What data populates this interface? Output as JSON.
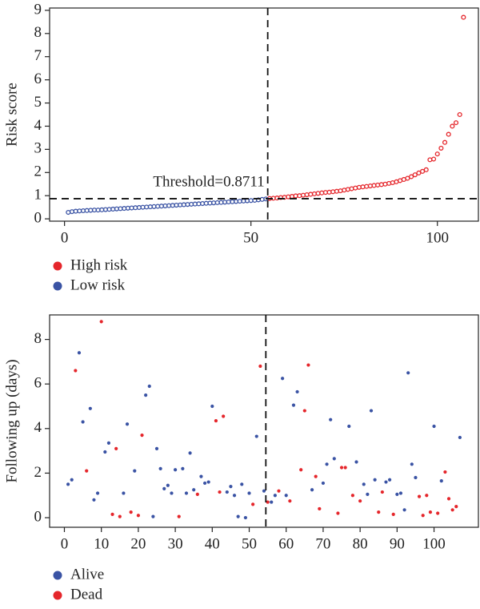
{
  "chart_data": [
    {
      "type": "scatter",
      "ylabel": "Risk score",
      "xlim": [
        -4,
        111
      ],
      "ylim": [
        -0.1,
        9.1
      ],
      "xticks": [
        0,
        50,
        100
      ],
      "yticks": [
        0,
        1,
        2,
        3,
        4,
        5,
        6,
        7,
        8,
        9
      ],
      "hollow": true,
      "threshold": {
        "value": 0.8711,
        "label": "Threshold=0.8711"
      },
      "vline_x": 54.5,
      "series": [
        {
          "name": "High risk",
          "color": "#e5262b",
          "x": [
            55,
            56,
            57,
            58,
            59,
            60,
            61,
            62,
            63,
            64,
            65,
            66,
            67,
            68,
            69,
            70,
            71,
            72,
            73,
            74,
            75,
            76,
            77,
            78,
            79,
            80,
            81,
            82,
            83,
            84,
            85,
            86,
            87,
            88,
            89,
            90,
            91,
            92,
            93,
            94,
            95,
            96,
            97,
            98,
            99,
            100,
            101,
            102,
            103,
            104,
            105,
            106,
            107
          ],
          "values": [
            0.88,
            0.89,
            0.9,
            0.92,
            0.93,
            0.95,
            0.97,
            0.99,
            1.0,
            1.02,
            1.04,
            1.06,
            1.08,
            1.1,
            1.12,
            1.14,
            1.15,
            1.17,
            1.19,
            1.21,
            1.24,
            1.27,
            1.3,
            1.33,
            1.36,
            1.38,
            1.4,
            1.42,
            1.44,
            1.46,
            1.48,
            1.5,
            1.53,
            1.56,
            1.6,
            1.65,
            1.7,
            1.75,
            1.82,
            1.9,
            1.98,
            2.05,
            2.12,
            2.55,
            2.58,
            2.8,
            3.05,
            3.3,
            3.65,
            4.0,
            4.15,
            4.5,
            8.7
          ]
        },
        {
          "name": "Low risk",
          "color": "#3a53a4",
          "x": [
            1,
            2,
            3,
            4,
            5,
            6,
            7,
            8,
            9,
            10,
            11,
            12,
            13,
            14,
            15,
            16,
            17,
            18,
            19,
            20,
            21,
            22,
            23,
            24,
            25,
            26,
            27,
            28,
            29,
            30,
            31,
            32,
            33,
            34,
            35,
            36,
            37,
            38,
            39,
            40,
            41,
            42,
            43,
            44,
            45,
            46,
            47,
            48,
            49,
            50,
            51,
            52,
            53,
            54
          ],
          "values": [
            0.28,
            0.31,
            0.33,
            0.34,
            0.35,
            0.36,
            0.37,
            0.38,
            0.38,
            0.39,
            0.4,
            0.41,
            0.42,
            0.43,
            0.44,
            0.45,
            0.46,
            0.47,
            0.48,
            0.49,
            0.5,
            0.51,
            0.52,
            0.53,
            0.54,
            0.55,
            0.56,
            0.57,
            0.58,
            0.59,
            0.6,
            0.61,
            0.62,
            0.63,
            0.64,
            0.65,
            0.66,
            0.67,
            0.68,
            0.69,
            0.7,
            0.71,
            0.72,
            0.73,
            0.74,
            0.75,
            0.76,
            0.77,
            0.78,
            0.79,
            0.8,
            0.82,
            0.84,
            0.86
          ]
        }
      ]
    },
    {
      "type": "scatter",
      "ylabel": "Following up (days)",
      "xlim": [
        -4,
        112
      ],
      "ylim": [
        -0.43,
        9.1
      ],
      "xticks": [
        0,
        10,
        20,
        30,
        40,
        50,
        60,
        70,
        80,
        90,
        100
      ],
      "yticks": [
        0,
        2,
        4,
        6,
        8
      ],
      "hollow": false,
      "vline_x": 54.5,
      "series": [
        {
          "name": "Alive",
          "color": "#3a53a4",
          "x": [
            1,
            2,
            4,
            5,
            7,
            8,
            9,
            11,
            12,
            16,
            17,
            19,
            22,
            23,
            24,
            25,
            26,
            27,
            28,
            29,
            30,
            32,
            33,
            34,
            35,
            37,
            38,
            39,
            40,
            44,
            45,
            46,
            47,
            48,
            49,
            50,
            52,
            54,
            56,
            57,
            59,
            60,
            62,
            63,
            67,
            70,
            71,
            72,
            73,
            77,
            79,
            81,
            82,
            83,
            84,
            87,
            88,
            90,
            91,
            92,
            93,
            94,
            95,
            100,
            102,
            107
          ],
          "values": [
            1.5,
            1.7,
            7.4,
            4.3,
            4.9,
            0.8,
            1.1,
            2.95,
            3.35,
            1.1,
            4.2,
            2.1,
            5.5,
            5.9,
            0.05,
            3.1,
            2.2,
            1.3,
            1.45,
            1.1,
            2.15,
            2.2,
            1.1,
            2.9,
            1.25,
            1.85,
            1.55,
            1.6,
            5.0,
            1.15,
            1.4,
            1.0,
            0.05,
            1.5,
            0.0,
            1.1,
            3.65,
            1.2,
            0.7,
            1.0,
            6.25,
            1.0,
            5.05,
            5.65,
            1.25,
            1.55,
            2.4,
            4.4,
            2.65,
            4.1,
            2.5,
            1.5,
            1.05,
            4.8,
            1.7,
            1.6,
            1.7,
            1.05,
            1.1,
            0.35,
            6.5,
            2.4,
            1.8,
            4.1,
            1.65,
            3.6
          ]
        },
        {
          "name": "Dead",
          "color": "#e5262b",
          "x": [
            3,
            6,
            10,
            13,
            14,
            15,
            18,
            20,
            21,
            31,
            36,
            41,
            42,
            43,
            51,
            53,
            55,
            58,
            61,
            64,
            65,
            66,
            68,
            69,
            74,
            75,
            76,
            78,
            80,
            85,
            86,
            89,
            96,
            97,
            98,
            99,
            101,
            103,
            104,
            105,
            106
          ],
          "values": [
            6.6,
            2.1,
            8.8,
            0.15,
            3.1,
            0.05,
            0.25,
            0.1,
            3.7,
            0.05,
            1.05,
            4.35,
            1.15,
            4.55,
            0.6,
            6.8,
            0.7,
            1.2,
            0.75,
            2.15,
            4.8,
            6.85,
            1.85,
            0.4,
            0.2,
            2.25,
            2.25,
            1.0,
            0.75,
            0.25,
            1.15,
            0.15,
            0.95,
            0.1,
            1.0,
            0.25,
            0.2,
            2.05,
            0.85,
            0.35,
            0.5
          ]
        }
      ]
    }
  ]
}
